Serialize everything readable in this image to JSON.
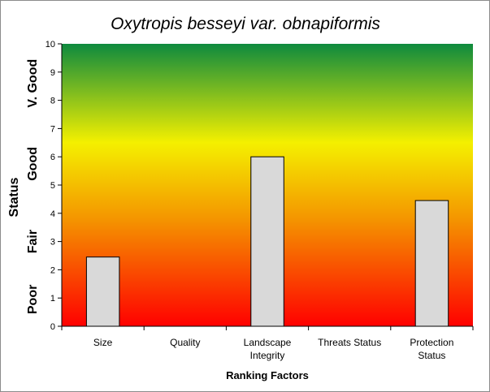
{
  "chart_data": {
    "type": "bar",
    "title": "Oxytropis besseyi var. obnapiformis",
    "xlabel": "Ranking Factors",
    "ylabel": "Status",
    "categories": [
      [
        "Size"
      ],
      [
        "Quality"
      ],
      [
        "Landscape",
        "Integrity"
      ],
      [
        "Threats Status"
      ],
      [
        "Protection",
        "Status"
      ]
    ],
    "values": [
      2.45,
      0,
      6,
      0,
      4.45
    ],
    "ylim": [
      0,
      10
    ],
    "yticks": [
      0,
      1,
      2,
      3,
      4,
      5,
      6,
      7,
      8,
      9,
      10
    ],
    "status_bands": [
      {
        "label": "Poor",
        "from": 0,
        "to": 1.9
      },
      {
        "label": "Fair",
        "from": 1.9,
        "to": 4.1
      },
      {
        "label": "Good",
        "from": 4.6,
        "to": 6.9
      },
      {
        "label": "V. Good",
        "from": 7.2,
        "to": 10
      }
    ],
    "grid": false,
    "legend": "none",
    "colors": {
      "bar_fill": "#d9d9d9",
      "bar_stroke": "#000000",
      "gradient_top": "#0e8a3e",
      "gradient_mid": "#f4f000",
      "gradient_low": "#f49500",
      "gradient_bottom": "#ff0000"
    }
  }
}
